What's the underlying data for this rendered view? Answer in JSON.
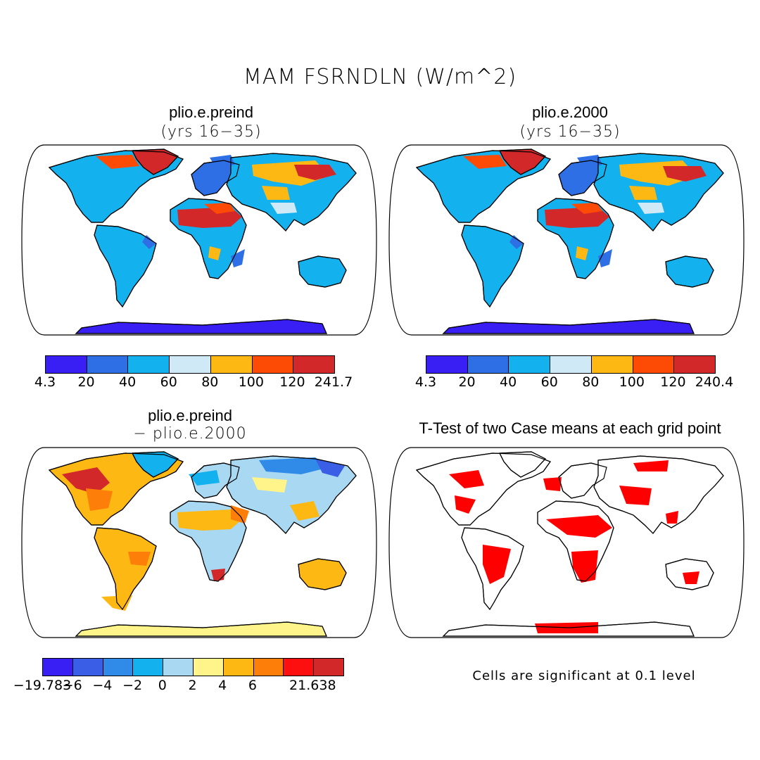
{
  "figure": {
    "title": "MAM FSRNDLN (W/m^2)",
    "note": "Cells are significant at 0.1 level"
  },
  "panels": [
    {
      "title": "plio.e.preind",
      "subtitle": "(yrs 16−35)",
      "colorbar": {
        "colors": [
          "#3a1ff5",
          "#2f6fe6",
          "#13b2ee",
          "#cfe9f7",
          "#fdb813",
          "#fd4a05",
          "#d3282a"
        ],
        "labels": [
          "4.3",
          "20",
          "40",
          "60",
          "80",
          "100",
          "120",
          "241.7"
        ]
      }
    },
    {
      "title": "plio.e.2000",
      "subtitle": "(yrs 16−35)",
      "colorbar": {
        "colors": [
          "#3a1ff5",
          "#2f6fe6",
          "#13b2ee",
          "#cfe9f7",
          "#fdb813",
          "#fd4a05",
          "#d3282a"
        ],
        "labels": [
          "4.3",
          "20",
          "40",
          "60",
          "80",
          "100",
          "120",
          "240.4"
        ]
      }
    },
    {
      "title": "plio.e.preind",
      "subtitle": "− plio.e.2000",
      "colorbar": {
        "colors": [
          "#3a1ff5",
          "#3a5fe6",
          "#2f8ae8",
          "#13b2ee",
          "#a8d8f2",
          "#fff48a",
          "#fdb813",
          "#fd7f0a",
          "#fd0f0f",
          "#d3282a"
        ],
        "labels": [
          "−19.783",
          "−6",
          "−4",
          "−2",
          "0",
          "2",
          "4",
          "6",
          "",
          "21.638"
        ]
      }
    },
    {
      "title": "T-Test of two Case means at each grid point",
      "subtitle": ""
    }
  ]
}
